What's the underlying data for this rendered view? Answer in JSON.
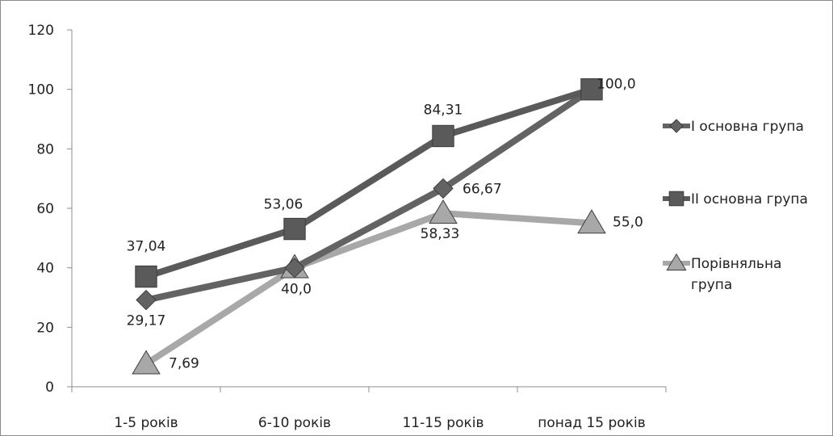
{
  "chart_data": {
    "type": "line",
    "categories": [
      "1-5 років",
      "6-10 років",
      "11-15 років",
      "понад 15 років"
    ],
    "ylim": [
      0,
      120
    ],
    "yticks": [
      0,
      20,
      40,
      60,
      80,
      100,
      120
    ],
    "grid": false,
    "legend_position": "right",
    "series": [
      {
        "name": "I основна група",
        "marker": "diamond",
        "color": "#636363",
        "values": [
          29.17,
          40.0,
          66.67,
          100.0
        ],
        "labels": [
          "29,17",
          "",
          "66,67",
          ""
        ]
      },
      {
        "name": "II основна група",
        "marker": "square",
        "color": "#5a5a5a",
        "values": [
          37.04,
          53.06,
          84.31,
          100.0
        ],
        "labels": [
          "37,04",
          "53,06",
          "84,31",
          "100,0"
        ]
      },
      {
        "name": "Порівняльна група",
        "name_lines": [
          "Порівняльна",
          "група"
        ],
        "marker": "triangle",
        "color": "#a8a8a8",
        "values": [
          7.69,
          40.0,
          58.33,
          55.0
        ],
        "labels": [
          "7,69",
          "40,0",
          "58,33",
          "55,0"
        ]
      }
    ]
  }
}
